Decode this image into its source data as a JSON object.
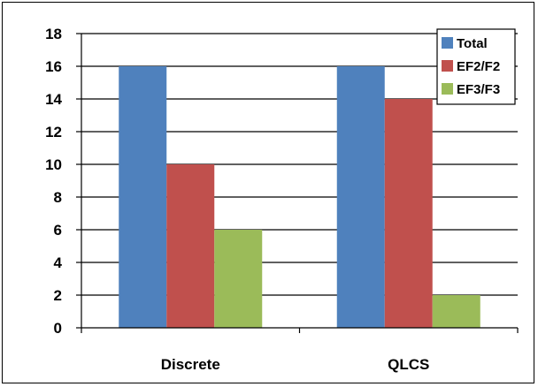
{
  "chart_data": {
    "type": "bar",
    "categories": [
      "Discrete",
      "QLCS"
    ],
    "series": [
      {
        "name": "Total",
        "values": [
          16,
          16
        ],
        "color": "#4F81BD"
      },
      {
        "name": "EF2/F2",
        "values": [
          10,
          14
        ],
        "color": "#C0504D"
      },
      {
        "name": "EF3/F3",
        "values": [
          6,
          2
        ],
        "color": "#9BBB59"
      }
    ],
    "yticks": [
      "0",
      "2",
      "4",
      "6",
      "8",
      "10",
      "12",
      "14",
      "16",
      "18"
    ],
    "ylim": [
      0,
      18
    ],
    "grid": true,
    "legend": "top-right"
  }
}
